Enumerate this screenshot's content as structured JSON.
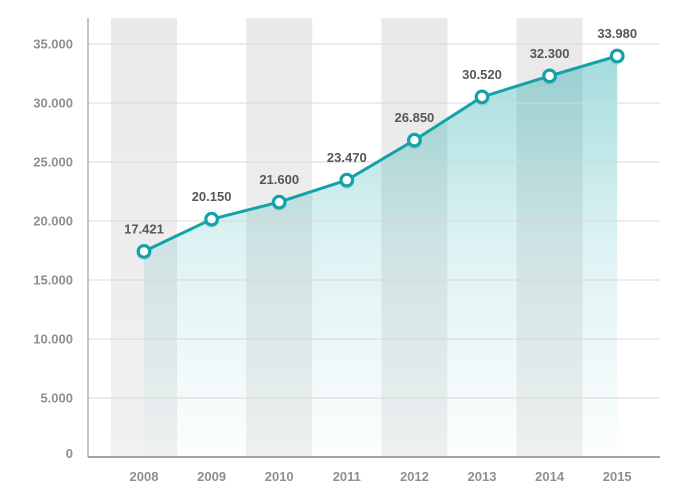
{
  "chart_data": {
    "type": "area",
    "title": "",
    "xlabel": "",
    "ylabel": "",
    "x_tick_labels": [
      "2008",
      "2009",
      "2010",
      "2011",
      "2012",
      "2013",
      "2014",
      "2015"
    ],
    "y_tick_labels": [
      "35.000",
      "30.000",
      "25.000",
      "20.000",
      "15.000",
      "10.000",
      "5.000",
      "0"
    ],
    "series": [
      {
        "name": "values",
        "values": [
          17421,
          20150,
          21600,
          23470,
          26850,
          30520,
          32300,
          33980
        ],
        "point_labels": [
          "17.421",
          "20.150",
          "21.600",
          "23.470",
          "26.850",
          "30.520",
          "32.300",
          "33.980"
        ]
      }
    ],
    "ylim": [
      0,
      35000
    ],
    "y_tick_step": 5000,
    "grid": true,
    "legend_position": "none",
    "plot_bands_at": [
      0,
      2,
      4,
      6
    ],
    "colors": {
      "line": "#12a3a8",
      "marker_fill": "#ffffff",
      "marker_stroke": "#12a3a8",
      "area_top": "rgba(18,163,168,0.40)",
      "area_mid": "rgba(18,163,168,0.14)",
      "area_bottom": "rgba(18,163,168,0.01)",
      "band_top": "#e9e9e9",
      "band_bottom": "#f1f1f1",
      "gridline": "#d8d8d8",
      "axis_line": "#b4b4b4",
      "baseline": "#a3a3a3",
      "tick_text": "#8f8f8f",
      "point_label_text": "#575757",
      "background": "#ffffff"
    }
  }
}
